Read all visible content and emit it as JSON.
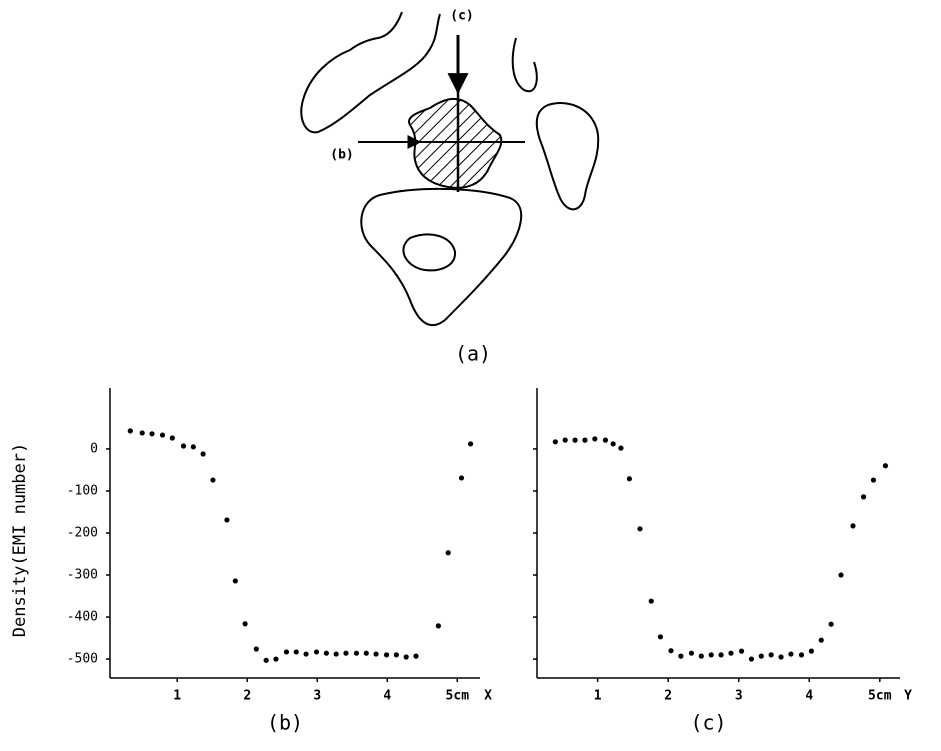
{
  "diagram": {
    "labels": [
      "(c)",
      "(b)"
    ],
    "caption": "(a)"
  },
  "chart_data": [
    {
      "type": "scatter",
      "caption": "(b)",
      "ylabel": "Density(EMI number)",
      "xlabel": "X",
      "color": "#000000",
      "ytick_labels": true,
      "xlim": [
        0.04,
        5.61
      ],
      "ylim": [
        -545,
        145
      ],
      "xticks": [
        1,
        2,
        3,
        4,
        {
          "value": 5,
          "label": "5cm"
        }
      ],
      "yticks": [
        0,
        -100,
        -200,
        -300,
        -400,
        -500
      ],
      "x": [
        0.33,
        0.5,
        0.64,
        0.79,
        0.93,
        1.09,
        1.23,
        1.37,
        1.51,
        1.71,
        1.83,
        1.97,
        2.13,
        2.27,
        2.41,
        2.56,
        2.7,
        2.84,
        2.99,
        3.13,
        3.27,
        3.41,
        3.56,
        3.7,
        3.84,
        3.99,
        4.13,
        4.27,
        4.41,
        4.73,
        4.87,
        5.06,
        5.19
      ],
      "values": [
        43,
        38,
        36,
        33,
        26,
        7,
        5,
        -12,
        -74,
        -169,
        -314,
        -416,
        -476,
        -503,
        -500,
        -483,
        -483,
        -488,
        -483,
        -486,
        -488,
        -486,
        -486,
        -486,
        -488,
        -490,
        -490,
        -495,
        -493,
        -421,
        -247,
        -69,
        12
      ]
    },
    {
      "type": "scatter",
      "caption": "(c)",
      "xlabel": "Y",
      "color": "#000000",
      "ytick_labels": false,
      "xlim": [
        0.14,
        5.57
      ],
      "ylim": [
        -545,
        145
      ],
      "xticks": [
        1,
        2,
        3,
        4,
        {
          "value": 5,
          "label": "5cm"
        }
      ],
      "yticks": [
        0,
        -100,
        -200,
        -300,
        -400,
        -500
      ],
      "x": [
        0.4,
        0.54,
        0.68,
        0.82,
        0.96,
        1.11,
        1.22,
        1.33,
        1.45,
        1.6,
        1.76,
        1.89,
        2.04,
        2.18,
        2.33,
        2.47,
        2.61,
        2.75,
        2.89,
        3.04,
        3.18,
        3.32,
        3.46,
        3.6,
        3.74,
        3.89,
        4.03,
        4.17,
        4.31,
        4.45,
        4.62,
        4.77,
        4.91,
        5.08
      ],
      "values": [
        17,
        21,
        21,
        21,
        24,
        21,
        12,
        2,
        -71,
        -190,
        -362,
        -447,
        -480,
        -493,
        -486,
        -493,
        -490,
        -490,
        -486,
        -481,
        -500,
        -493,
        -490,
        -495,
        -488,
        -490,
        -481,
        -455,
        -417,
        -300,
        -183,
        -114,
        -74,
        -40
      ]
    }
  ]
}
